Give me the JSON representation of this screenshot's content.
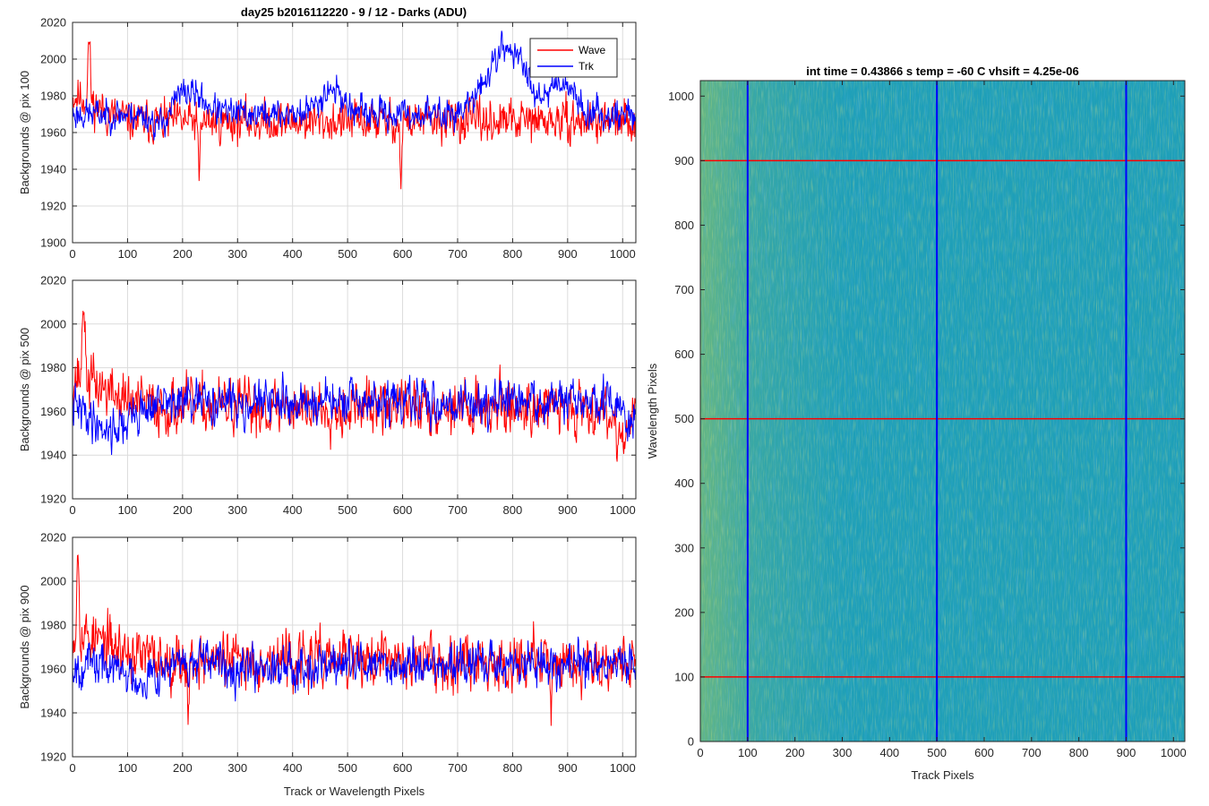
{
  "figure_title": "day25 b2016112220 - 9 / 12 - Darks (ADU)",
  "chart_data": [
    {
      "type": "line",
      "ylabel": "Backgrounds @ pix 100",
      "xlabel": "",
      "xlim": [
        0,
        1024
      ],
      "ylim": [
        1900,
        2020
      ],
      "xticks": [
        "0",
        "100",
        "200",
        "300",
        "400",
        "500",
        "600",
        "700",
        "800",
        "900",
        "1000"
      ],
      "yticks": [
        "1900",
        "1920",
        "1940",
        "1960",
        "1980",
        "2000",
        "2020"
      ],
      "grid": true,
      "legend": "top-right",
      "series": [
        {
          "name": "Wave",
          "color": "#ff0000",
          "mean": 1966,
          "noise": 8,
          "seed": 11,
          "features": [
            [
              0,
              60,
              14
            ],
            [
              597,
              2,
              -38
            ],
            [
              230,
              2,
              -36
            ],
            [
              30,
              3,
              34
            ]
          ]
        },
        {
          "name": "Trk",
          "color": "#0000ff",
          "mean": 1970,
          "noise": 6,
          "seed": 23,
          "features": [
            [
              790,
              50,
              36
            ],
            [
              470,
              30,
              14
            ],
            [
              210,
              40,
              12
            ],
            [
              890,
              30,
              18
            ],
            [
              160,
              20,
              -8
            ]
          ]
        }
      ]
    },
    {
      "type": "line",
      "ylabel": "Backgrounds @ pix 500",
      "xlabel": "",
      "xlim": [
        0,
        1024
      ],
      "ylim": [
        1920,
        2020
      ],
      "xticks": [
        "0",
        "100",
        "200",
        "300",
        "400",
        "500",
        "600",
        "700",
        "800",
        "900",
        "1000"
      ],
      "yticks": [
        "1920",
        "1940",
        "1960",
        "1980",
        "2000",
        "2020"
      ],
      "grid": true,
      "series": [
        {
          "name": "Wave",
          "color": "#ff0000",
          "mean": 1962,
          "noise": 9,
          "seed": 37,
          "features": [
            [
              0,
              80,
              14
            ],
            [
              20,
              3,
              40
            ],
            [
              1000,
              20,
              -12
            ]
          ]
        },
        {
          "name": "Trk",
          "color": "#0000ff",
          "mean": 1964,
          "noise": 7,
          "seed": 41,
          "features": [
            [
              70,
              50,
              -12
            ],
            [
              1010,
              10,
              -14
            ]
          ]
        }
      ]
    },
    {
      "type": "line",
      "ylabel": "Backgrounds @ pix 900",
      "xlabel": "Track or Wavelength Pixels",
      "xlim": [
        0,
        1024
      ],
      "ylim": [
        1920,
        2020
      ],
      "xticks": [
        "0",
        "100",
        "200",
        "300",
        "400",
        "500",
        "600",
        "700",
        "800",
        "900",
        "1000"
      ],
      "yticks": [
        "1920",
        "1940",
        "1960",
        "1980",
        "2000",
        "2020"
      ],
      "grid": true,
      "series": [
        {
          "name": "Wave",
          "color": "#ff0000",
          "mean": 1964,
          "noise": 9,
          "seed": 53,
          "features": [
            [
              0,
              90,
              12
            ],
            [
              10,
              3,
              40
            ],
            [
              210,
              2,
              -28
            ],
            [
              870,
              2,
              -26
            ]
          ]
        },
        {
          "name": "Trk",
          "color": "#0000ff",
          "mean": 1962,
          "noise": 7,
          "seed": 67,
          "features": [
            [
              120,
              40,
              -6
            ]
          ]
        }
      ]
    },
    {
      "type": "heatmap",
      "title": "int time = 0.43866 s    temp = -60 C    vhsift = 4.25e-06",
      "xlabel": "Track Pixels",
      "ylabel": "Wavelength Pixels",
      "xlim": [
        0,
        1024
      ],
      "ylim": [
        0,
        1024
      ],
      "xticks": [
        "0",
        "100",
        "200",
        "300",
        "400",
        "500",
        "600",
        "700",
        "800",
        "900",
        "1000"
      ],
      "yticks": [
        "0",
        "100",
        "200",
        "300",
        "400",
        "500",
        "600",
        "700",
        "800",
        "900",
        "1000"
      ],
      "base_color": "#1e9fb8",
      "vlines": {
        "color": "#0000ff",
        "x": [
          100,
          500,
          900
        ]
      },
      "hlines": {
        "color": "#ff0000",
        "y": [
          100,
          500,
          900
        ]
      }
    }
  ]
}
